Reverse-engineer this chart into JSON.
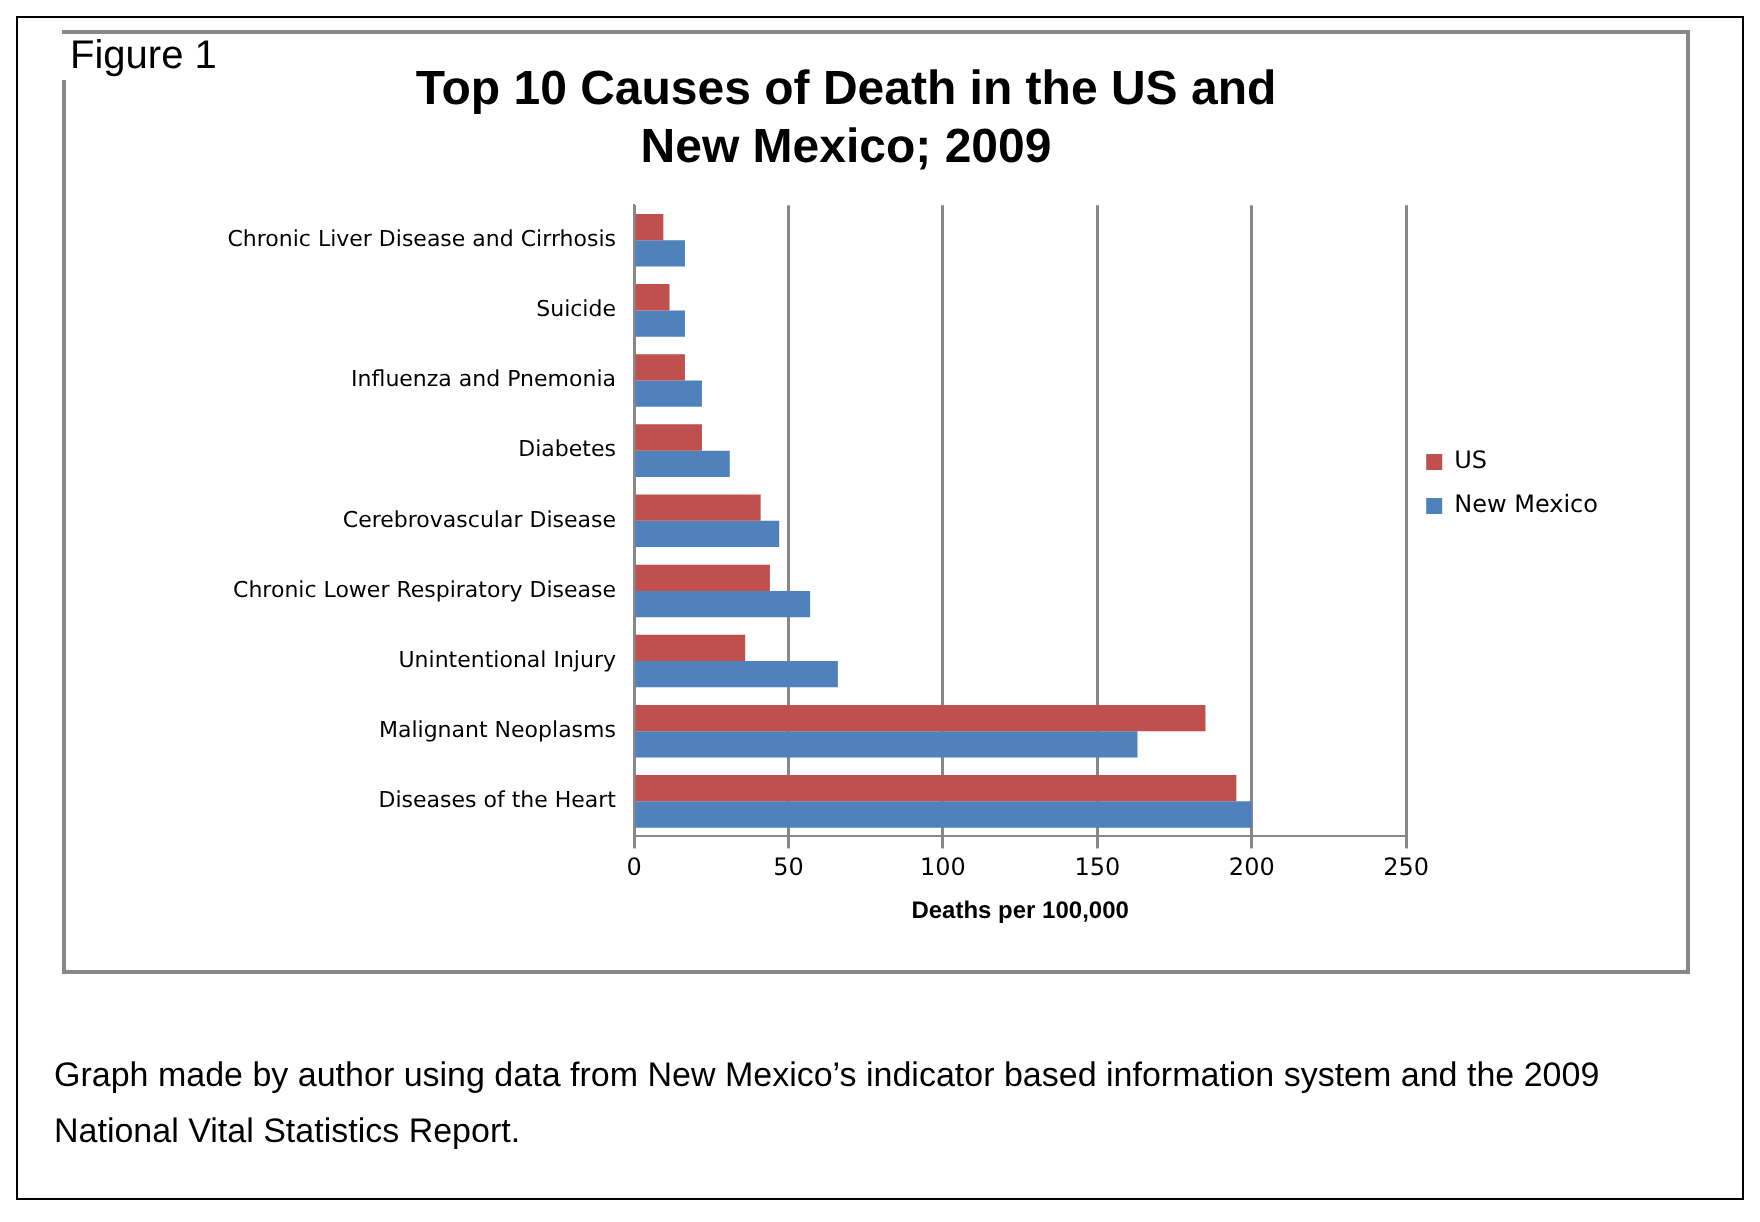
{
  "chart_data": {
    "type": "bar",
    "orientation": "horizontal",
    "title": "Top 10 Causes of Death in the US and New Mexico; 2009",
    "xlabel": "Deaths per 100,000",
    "categories": [
      "Chronic Liver Disease and Cirrhosis",
      "Suicide",
      "Influenza and Pnemonia",
      "Diabetes",
      "Cerebrovascular Disease",
      "Chronic Lower Respiratory Disease",
      "Unintentional Injury",
      "Malignant Neoplasms",
      "Diseases of the Heart"
    ],
    "series": [
      {
        "name": "US",
        "color": "#c0504d",
        "values": [
          9.5,
          11.5,
          16.5,
          22,
          41,
          44,
          36,
          185,
          195
        ]
      },
      {
        "name": "New Mexico",
        "color": "#4f81bd",
        "values": [
          16.5,
          16.5,
          22,
          31,
          47,
          57,
          66,
          163,
          200
        ]
      }
    ],
    "xlim": [
      0,
      250
    ],
    "xticks": [
      0,
      50,
      100,
      150,
      200,
      250
    ],
    "grid": "x",
    "legend": "right",
    "annotations": [
      "Figure 1",
      "Graph made by author using data from New Mexico’s indicator based information system and the 2009 National Vital Statistics Report."
    ]
  }
}
